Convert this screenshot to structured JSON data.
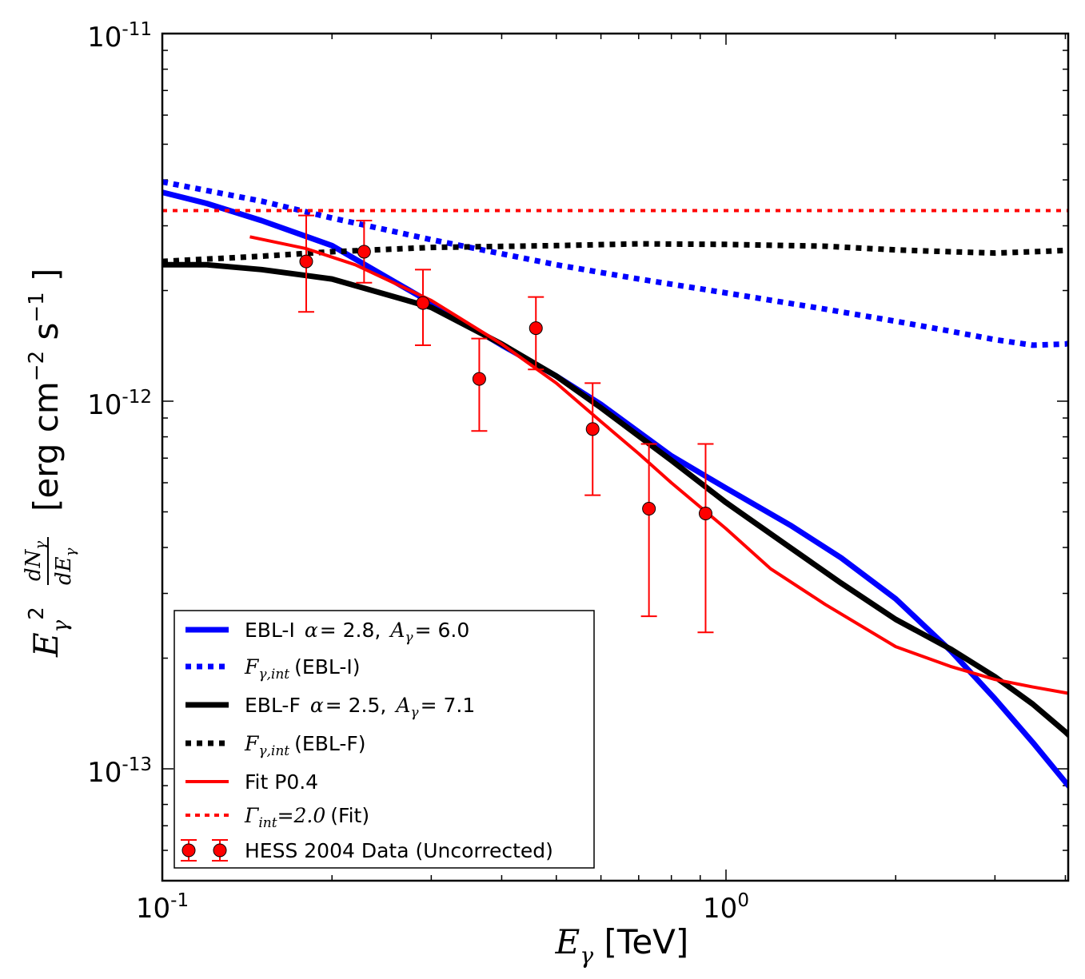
{
  "chart_data": {
    "type": "line",
    "title": "",
    "xlabel": {
      "symbol": "E",
      "sub": "γ",
      "unit": "[TeV]"
    },
    "ylabel": {
      "unit": "[erg cm",
      "exp": "−2",
      "s": "s",
      "sexp": "−1",
      "close": "]"
    },
    "xscale": "log",
    "yscale": "log",
    "xlim": [
      0.1,
      4.5
    ],
    "ylim": [
      5.5e-14,
      1e-11
    ],
    "xticks": [
      {
        "base": "10",
        "exp": "-1"
      },
      {
        "base": "10",
        "exp": "0"
      }
    ],
    "yticks": [
      {
        "base": "10",
        "exp": "-13"
      },
      {
        "base": "10",
        "exp": "-12"
      },
      {
        "base": "10",
        "exp": "-11"
      }
    ],
    "series": [
      {
        "name": "EBL-I",
        "style": "solid",
        "color": "#0000ff",
        "x": [
          0.1,
          0.12,
          0.15,
          0.2,
          0.3,
          0.4,
          0.5,
          0.6,
          0.8,
          1.0,
          1.3,
          1.6,
          2.0,
          2.5,
          3.0,
          3.5,
          4.0,
          4.4
        ],
        "y": [
          3.7e-12,
          3.45e-12,
          3.1e-12,
          2.65e-12,
          1.85e-12,
          1.42e-12,
          1.17e-12,
          9.8e-13,
          7.1e-13,
          5.8e-13,
          4.6e-13,
          3.75e-13,
          2.9e-13,
          2.1e-13,
          1.55e-13,
          1.18e-13,
          9.2e-14,
          7.8e-14
        ]
      },
      {
        "name": "F_int (EBL-I)",
        "style": "dotted",
        "color": "#0000ff",
        "x": [
          0.1,
          0.15,
          0.2,
          0.3,
          0.5,
          0.7,
          1.0,
          1.5,
          2.0,
          2.5,
          3.0,
          3.5,
          4.0,
          4.4
        ],
        "y": [
          3.95e-12,
          3.5e-12,
          3.15e-12,
          2.75e-12,
          2.35e-12,
          2.15e-12,
          1.97e-12,
          1.78e-12,
          1.65e-12,
          1.55e-12,
          1.47e-12,
          1.42e-12,
          1.43e-12,
          1.48e-12
        ]
      },
      {
        "name": "EBL-F",
        "style": "solid",
        "color": "#000000",
        "x": [
          0.1,
          0.12,
          0.15,
          0.2,
          0.3,
          0.4,
          0.5,
          0.6,
          0.8,
          1.0,
          1.3,
          1.6,
          2.0,
          2.5,
          3.0,
          3.5,
          4.0,
          4.5
        ],
        "y": [
          2.35e-12,
          2.35e-12,
          2.28e-12,
          2.15e-12,
          1.8e-12,
          1.43e-12,
          1.17e-12,
          9.6e-13,
          6.9e-13,
          5.3e-13,
          4e-13,
          3.2e-13,
          2.55e-13,
          2.12e-13,
          1.78e-13,
          1.5e-13,
          1.26e-13,
          1.06e-13
        ]
      },
      {
        "name": "F_int (EBL-F)",
        "style": "dotted",
        "color": "#000000",
        "x": [
          0.1,
          0.15,
          0.2,
          0.3,
          0.5,
          0.7,
          1.0,
          1.5,
          2.0,
          2.5,
          3.0,
          3.5,
          4.0,
          4.5
        ],
        "y": [
          2.4e-12,
          2.48e-12,
          2.55e-12,
          2.62e-12,
          2.65e-12,
          2.68e-12,
          2.67e-12,
          2.64e-12,
          2.58e-12,
          2.55e-12,
          2.53e-12,
          2.55e-12,
          2.57e-12,
          2.6e-12
        ]
      },
      {
        "name": "Fit P0.4",
        "style": "solid",
        "color": "#ff0000",
        "x": [
          0.143,
          0.18,
          0.22,
          0.3,
          0.4,
          0.5,
          0.6,
          0.7,
          0.8,
          1.0,
          1.2,
          1.5,
          2.0,
          2.5,
          3.0,
          3.5,
          4.0,
          4.4
        ],
        "y": [
          2.8e-12,
          2.6e-12,
          2.35e-12,
          1.88e-12,
          1.43e-12,
          1.12e-12,
          8.8e-13,
          7.2e-13,
          6e-13,
          4.5e-13,
          3.5e-13,
          2.8e-13,
          2.15e-13,
          1.9e-13,
          1.75e-13,
          1.67e-13,
          1.61e-13,
          1.57e-13
        ]
      },
      {
        "name": "Γint=2.0 (Fit)",
        "style": "dotted",
        "color": "#ff0000",
        "x": [
          0.1,
          4.4
        ],
        "y": [
          3.3e-12,
          3.3e-12
        ]
      }
    ],
    "data_points": {
      "name": "HESS 2004 Data (Uncorrected)",
      "color": "#ff0000",
      "x": [
        0.18,
        0.228,
        0.29,
        0.365,
        0.46,
        0.58,
        0.73,
        0.92
      ],
      "y": [
        2.4e-12,
        2.55e-12,
        1.85e-12,
        1.15e-12,
        1.58e-12,
        8.4e-13,
        5.1e-13,
        4.95e-13
      ],
      "yerr_low": [
        1.75e-12,
        2.1e-12,
        1.42e-12,
        8.3e-13,
        1.22e-12,
        5.55e-13,
        2.6e-13,
        2.35e-13
      ],
      "yerr_high": [
        3.2e-12,
        3.1e-12,
        2.28e-12,
        1.48e-12,
        1.92e-12,
        1.12e-12,
        7.65e-13,
        7.65e-13
      ]
    },
    "legend": {
      "position": "lower-left",
      "entries": [
        {
          "key": "ebl-i",
          "name": "EBL-I",
          "params": [
            {
              "sym": "α",
              "val": "= 2.8,"
            },
            {
              "sym": "A",
              "sub": "γ",
              "val": "= 6.0"
            }
          ]
        },
        {
          "key": "fint-ebl-i",
          "math": "F",
          "sub": "γ,int",
          "suffix": "(EBL-I)"
        },
        {
          "key": "ebl-f",
          "name": "EBL-F",
          "params": [
            {
              "sym": "α",
              "val": "= 2.5,"
            },
            {
              "sym": "A",
              "sub": "γ",
              "val": "= 7.1"
            }
          ]
        },
        {
          "key": "fint-ebl-f",
          "math": "F",
          "sub": "γ,int",
          "suffix": "(EBL-F)"
        },
        {
          "key": "fit",
          "name": "Fit P0.4"
        },
        {
          "key": "gamma-int",
          "math": "Γ",
          "sub": "int",
          "eq": "=2.0",
          "suffix": "(Fit)"
        },
        {
          "key": "hess",
          "name": "HESS 2004 Data (Uncorrected)"
        }
      ]
    }
  }
}
